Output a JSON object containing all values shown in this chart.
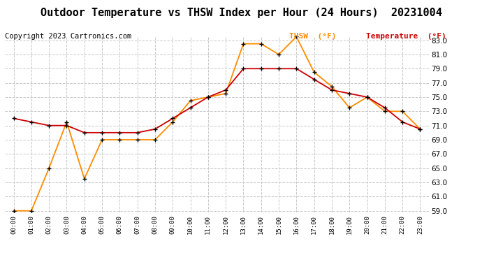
{
  "title": "Outdoor Temperature vs THSW Index per Hour (24 Hours)  20231004",
  "copyright": "Copyright 2023 Cartronics.com",
  "hours": [
    "00:00",
    "01:00",
    "02:00",
    "03:00",
    "04:00",
    "05:00",
    "06:00",
    "07:00",
    "08:00",
    "09:00",
    "10:00",
    "11:00",
    "12:00",
    "13:00",
    "14:00",
    "15:00",
    "16:00",
    "17:00",
    "18:00",
    "19:00",
    "20:00",
    "21:00",
    "22:00",
    "23:00"
  ],
  "temperature": [
    72.0,
    71.5,
    71.0,
    71.0,
    70.0,
    70.0,
    70.0,
    70.0,
    70.5,
    72.0,
    73.5,
    75.0,
    76.0,
    79.0,
    79.0,
    79.0,
    79.0,
    77.5,
    76.0,
    75.5,
    75.0,
    73.5,
    71.5,
    70.5
  ],
  "thsw": [
    59.0,
    59.0,
    65.0,
    71.5,
    63.5,
    69.0,
    69.0,
    69.0,
    69.0,
    71.5,
    74.5,
    75.0,
    75.5,
    82.5,
    82.5,
    81.0,
    83.5,
    78.5,
    76.5,
    73.5,
    75.0,
    73.0,
    73.0,
    70.5
  ],
  "temp_color": "#cc0000",
  "thsw_color": "#ff8c00",
  "marker_color": "black",
  "marker_size": 5,
  "line_width": 1.3,
  "ylim_min": 59.0,
  "ylim_max": 83.0,
  "ytick_step": 2.0,
  "grid_color": "#c8c8c8",
  "grid_linestyle": "--",
  "background_color": "#ffffff",
  "title_fontsize": 11,
  "copyright_fontsize": 7.5,
  "legend_thsw": "THSW  (°F)",
  "legend_temp": "Temperature  (°F)",
  "legend_thsw_color": "#ff8c00",
  "legend_temp_color": "#cc0000",
  "ytick_fontsize": 7.5,
  "xtick_fontsize": 6.5
}
